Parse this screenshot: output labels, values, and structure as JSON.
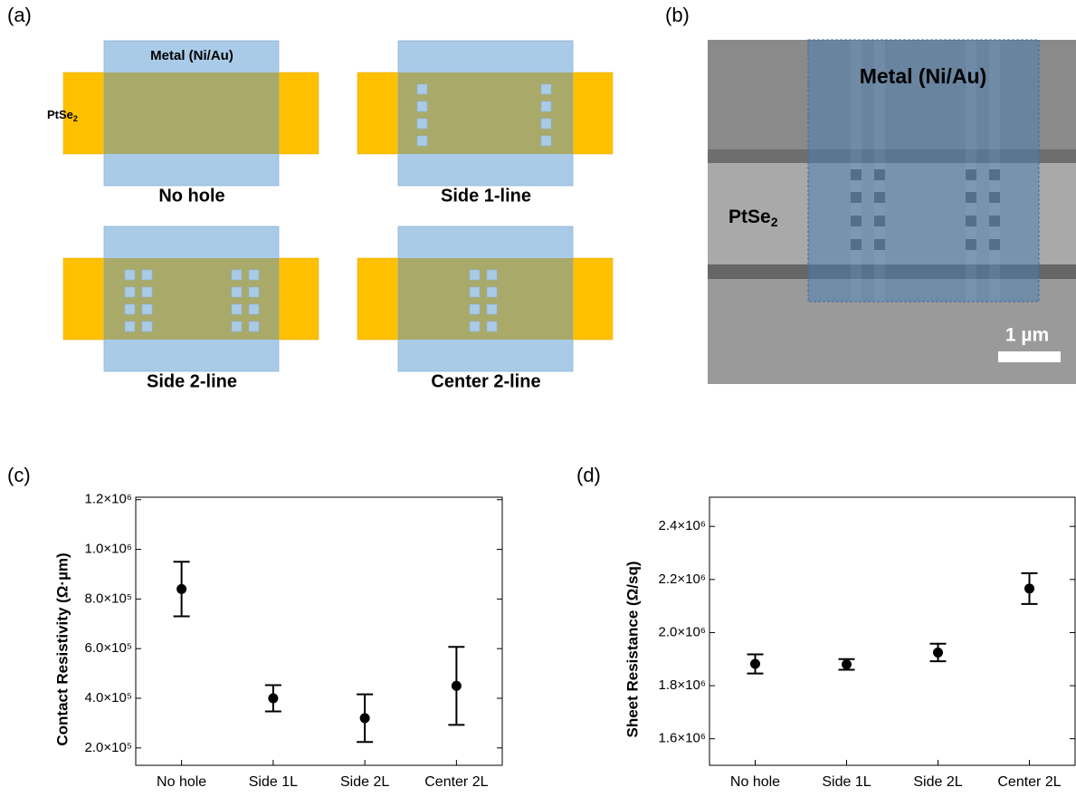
{
  "panel_labels": [
    "(a)",
    "(b)",
    "(c)",
    "(d)"
  ],
  "schematic": {
    "metal_label": "Metal (Ni/Au)",
    "material_label": "PtSe",
    "material_subscript": "2",
    "variants": [
      "No hole",
      "Side 1-line",
      "Side 2-line",
      "Center 2-line"
    ]
  },
  "sem": {
    "metal_label": "Metal (Ni/Au)",
    "material_label": "PtSe",
    "material_subscript": "2",
    "scale_bar": "1 µm"
  },
  "chart_data": [
    {
      "type": "errorbar",
      "y_label": "Contact Resistivity (Ω·µm)",
      "categories": [
        "No hole",
        "Side 1L",
        "Side 2L",
        "Center 2L"
      ],
      "values": [
        840000,
        400000,
        320000,
        450000
      ],
      "errors": [
        110000,
        53000,
        96000,
        157000
      ],
      "color": "#000000",
      "ylim": [
        130000,
        1210000
      ],
      "yticks": [
        {
          "value": 200000,
          "label": "2.0×10⁵"
        },
        {
          "value": 400000,
          "label": "4.0×10⁵"
        },
        {
          "value": 600000,
          "label": "6.0×10⁵"
        },
        {
          "value": 800000,
          "label": "8.0×10⁵"
        },
        {
          "value": 1000000,
          "label": "1.0×10⁶"
        },
        {
          "value": 1200000,
          "label": "1.2×10⁶"
        }
      ]
    },
    {
      "type": "errorbar",
      "y_label": "Sheet Resistance (Ω/sq)",
      "categories": [
        "No hole",
        "Side 1L",
        "Side 2L",
        "Center 2L"
      ],
      "values": [
        1882000,
        1880000,
        1925000,
        2166000
      ],
      "errors": [
        36000,
        20000,
        33000,
        58000
      ],
      "color": "#000000",
      "ylim": [
        1500000,
        2510000
      ],
      "yticks": [
        {
          "value": 1600000,
          "label": "1.6×10⁶"
        },
        {
          "value": 1800000,
          "label": "1.8×10⁶"
        },
        {
          "value": 2000000,
          "label": "2.0×10⁶"
        },
        {
          "value": 2200000,
          "label": "2.2×10⁶"
        },
        {
          "value": 2400000,
          "label": "2.4×10⁶"
        }
      ]
    }
  ]
}
